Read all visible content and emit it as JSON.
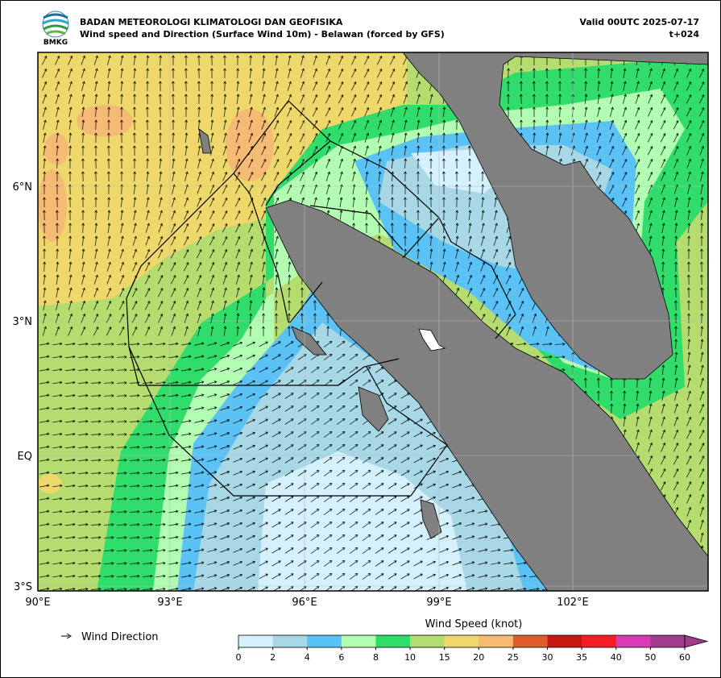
{
  "header": {
    "logo_text": "BMKG",
    "title": "BADAN METEOROLOGI KLIMATOLOGI DAN GEOFISIKA",
    "subtitle": "Wind speed and Direction (Surface Wind 10m) - Belawan (forced by GFS)",
    "valid": "Valid 00UTC 2025-07-17",
    "lead": "t+024"
  },
  "map": {
    "lon_labels": [
      "90°E",
      "93°E",
      "96°E",
      "99°E",
      "102°E"
    ],
    "lat_labels": [
      "6°N",
      "3°N",
      "EQ",
      "3°S"
    ]
  },
  "legend": {
    "arrow_label": "Wind Direction",
    "colorbar_title": "Wind Speed (knot)",
    "ticks": [
      0,
      2,
      4,
      6,
      8,
      10,
      15,
      20,
      25,
      30,
      35,
      40,
      50,
      60
    ],
    "colors": [
      "#d4f1fd",
      "#a8d8e6",
      "#5bc2f5",
      "#b3fdb3",
      "#30dd6b",
      "#b5dc6f",
      "#eed86c",
      "#f5ba74",
      "#e05c2a",
      "#c8170f",
      "#f41c26",
      "#d93bb4",
      "#9f3d8c"
    ]
  }
}
